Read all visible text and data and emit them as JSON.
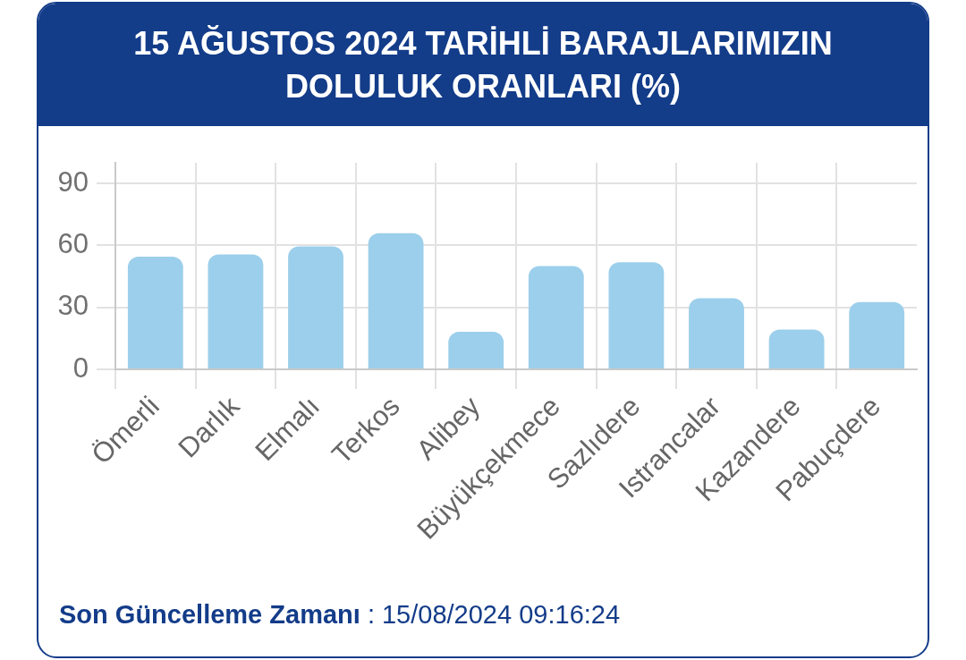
{
  "chart_data": {
    "type": "bar",
    "title": "15 AĞUSTOS 2024 TARİHLİ BARAJLARIMIZIN DOLULUK ORANLARI (%)",
    "categories": [
      "Ömerli",
      "Darlık",
      "Elmalı",
      "Terkos",
      "Alibey",
      "Büyükçekmece",
      "Sazlıdere",
      "Istrancalar",
      "Kazandere",
      "Pabuçdere"
    ],
    "values": [
      54.5,
      55.6,
      59.5,
      65.9,
      18.2,
      50.0,
      51.8,
      34.4,
      19.3,
      32.6
    ],
    "color": "#9ccfeb",
    "ylim": [
      0,
      100
    ],
    "yticks": [
      0,
      30,
      60,
      90
    ],
    "grid": true,
    "annotations": [
      "Son Güncelleme Zamanı : 15/08/2024 09:16:24"
    ]
  }
}
